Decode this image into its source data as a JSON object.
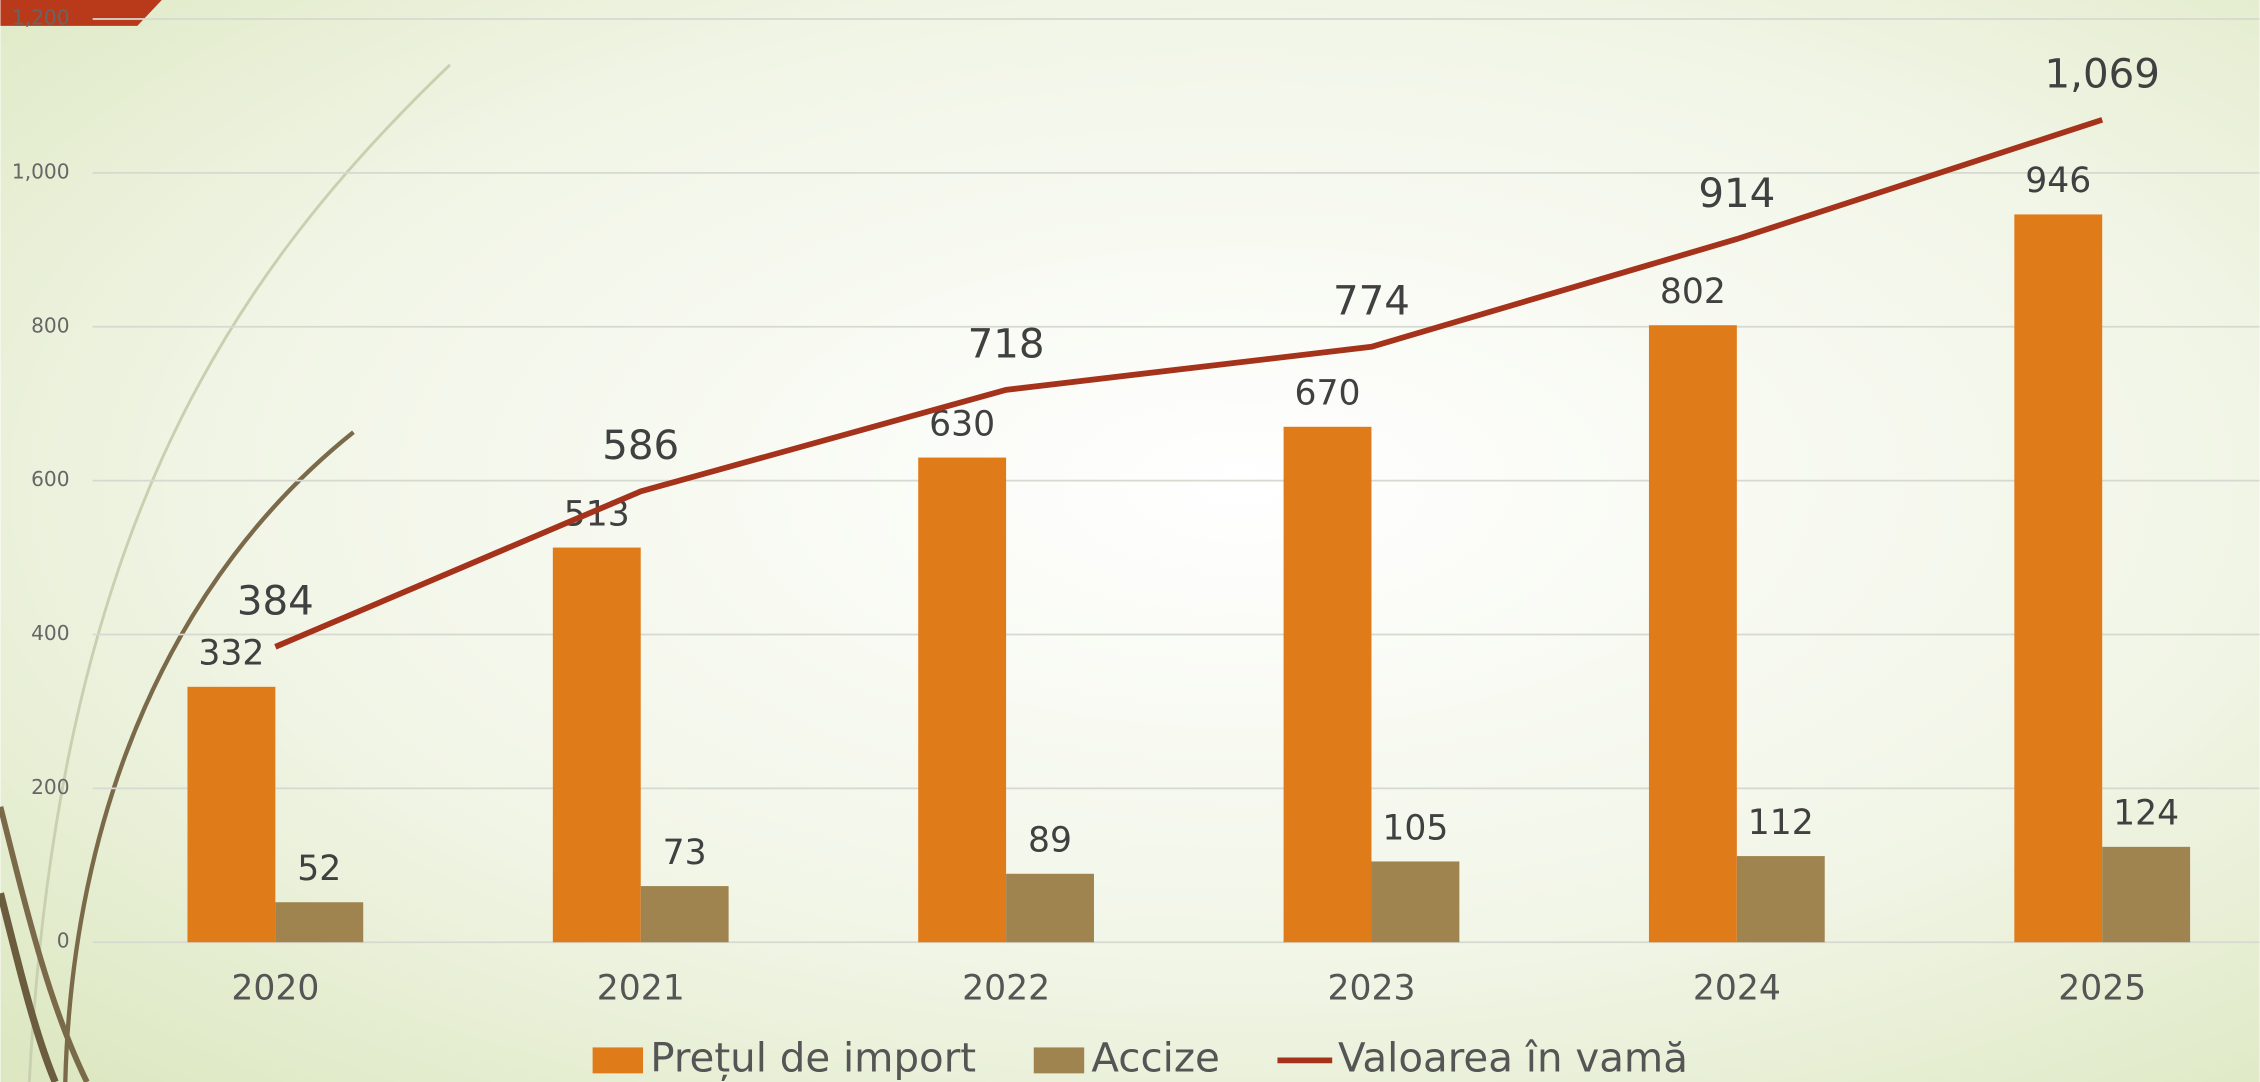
{
  "chart_data": {
    "type": "bar",
    "categories": [
      "2020",
      "2021",
      "2022",
      "2023",
      "2024",
      "2025"
    ],
    "series": [
      {
        "name": "Prețul de import",
        "type": "bar",
        "color": "#e07b1a",
        "values": [
          332,
          513,
          630,
          670,
          802,
          946
        ]
      },
      {
        "name": "Accize",
        "type": "bar",
        "color": "#a08450",
        "values": [
          52,
          73,
          89,
          105,
          112,
          124
        ]
      },
      {
        "name": "Valoarea în vamă",
        "type": "line",
        "color": "#a5321a",
        "values": [
          384,
          586,
          718,
          774,
          914,
          1069
        ],
        "value_labels": [
          "384",
          "586",
          "718",
          "774",
          "914",
          "1,069"
        ]
      }
    ],
    "ylim": [
      0,
      1200
    ],
    "yticks": [
      0,
      200,
      400,
      600,
      800,
      {
        "value": 1000,
        "label": "1,000"
      },
      {
        "value": 1200,
        "label": "1,200"
      }
    ],
    "grid": true,
    "legend": "bottom"
  }
}
